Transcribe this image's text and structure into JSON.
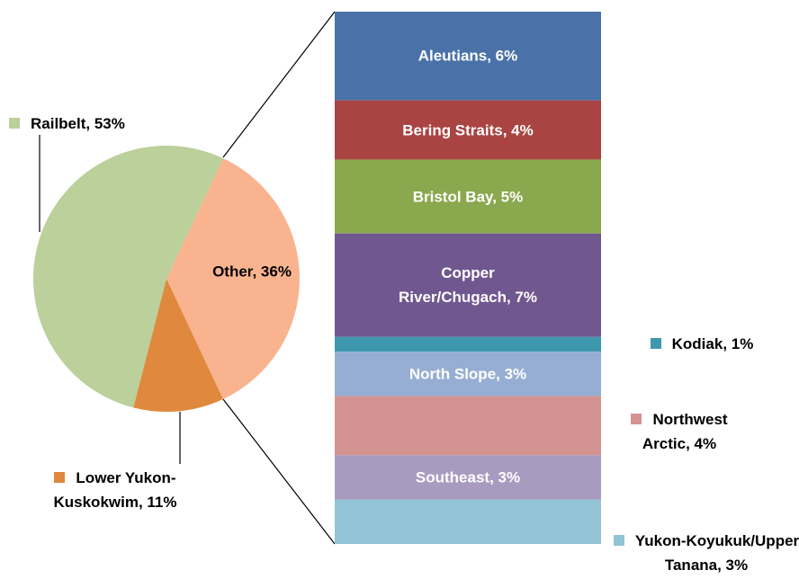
{
  "chart_data": [
    {
      "type": "pie",
      "values": [
        36,
        11,
        53
      ],
      "value_labels": [
        "Other, 36%",
        "Lower Yukon-Kuskokwim, 11%",
        "Railbelt, 53%"
      ],
      "colors": [
        "#f9b48f",
        "#e0883e",
        "#bbd09a"
      ]
    },
    {
      "type": "bar",
      "values": [
        6,
        4,
        5,
        7,
        1,
        3,
        4,
        3,
        3
      ],
      "value_labels": [
        "Aleutians, 6%",
        "Bering Straits, 4%",
        "Bristol Bay, 5%",
        "Copper River/Chugach, 7%",
        "Kodiak, 1%",
        "North Slope, 3%",
        "Northwest Arctic, 4%",
        "Southeast, 3%",
        "Yukon-Koyukuk/Upper Tanana, 3%"
      ],
      "colors": [
        "#4a72a9",
        "#a94442",
        "#8aa84e",
        "#71578f",
        "#3e98ad",
        "#97aed4",
        "#d49391",
        "#a99bc0",
        "#92c3d6"
      ]
    }
  ]
}
